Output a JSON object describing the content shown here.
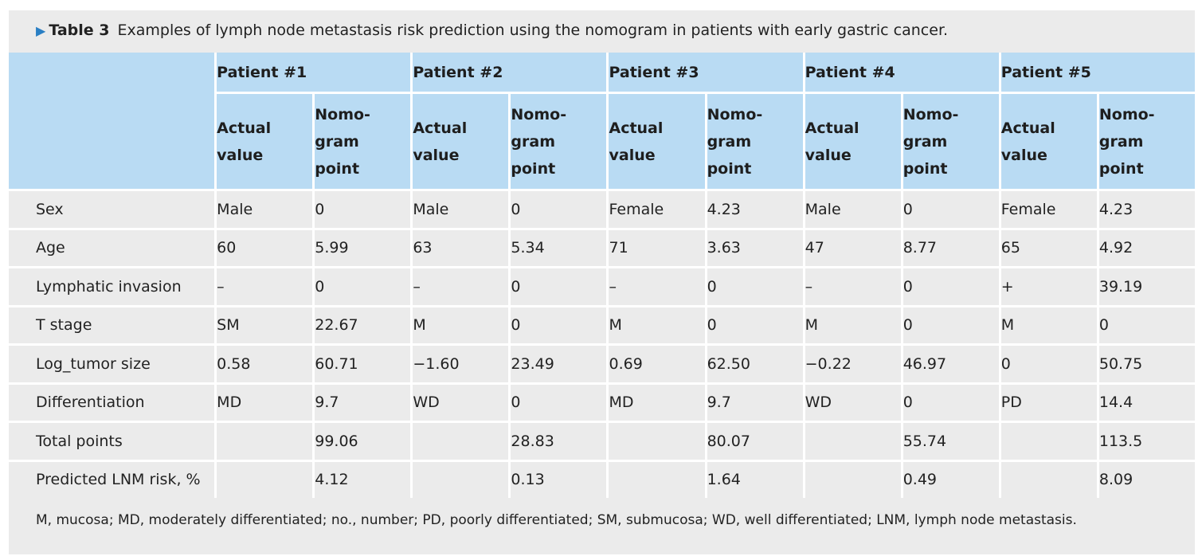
{
  "caption": {
    "arrow": "▶",
    "label": "Table 3",
    "text": "Examples of lymph node metastasis risk prediction using the nomogram in patients with early gastric cancer."
  },
  "patients": [
    "Patient #1",
    "Patient #2",
    "Patient #3",
    "Patient #4",
    "Patient #5"
  ],
  "subheaders": {
    "actual": [
      "Actual",
      "value"
    ],
    "nomogram": [
      "Nomo-",
      "gram",
      "point"
    ]
  },
  "rows": [
    {
      "label": "Sex",
      "cells": [
        "Male",
        "0",
        "Male",
        "0",
        "Female",
        "4.23",
        "Male",
        "0",
        "Female",
        "4.23"
      ]
    },
    {
      "label": "Age",
      "cells": [
        "60",
        "5.99",
        "63",
        "5.34",
        "71",
        "3.63",
        "47",
        "8.77",
        "65",
        "4.92"
      ]
    },
    {
      "label": "Lymphatic invasion",
      "cells": [
        "–",
        "0",
        "–",
        "0",
        "–",
        "0",
        "–",
        "0",
        "+",
        "39.19"
      ]
    },
    {
      "label": "T stage",
      "cells": [
        "SM",
        "22.67",
        "M",
        "0",
        "M",
        "0",
        "M",
        "0",
        "M",
        "0"
      ]
    },
    {
      "label": "Log_tumor size",
      "cells": [
        "0.58",
        "60.71",
        "−1.60",
        "23.49",
        "0.69",
        "62.50",
        "−0.22",
        "46.97",
        "0",
        "50.75"
      ]
    },
    {
      "label": "Differentiation",
      "cells": [
        "MD",
        "9.7",
        "WD",
        "0",
        "MD",
        "9.7",
        "WD",
        "0",
        "PD",
        "14.4"
      ]
    },
    {
      "label": "Total points",
      "cells": [
        "",
        "99.06",
        "",
        "28.83",
        "",
        "80.07",
        "",
        "55.74",
        "",
        "113.5"
      ]
    },
    {
      "label": "Predicted LNM risk, %",
      "cells": [
        "",
        "4.12",
        "",
        "0.13",
        "",
        "1.64",
        "",
        "0.49",
        "",
        "8.09"
      ]
    }
  ],
  "footnote": "M, mucosa; MD, moderately differentiated; no., number; PD, poorly differentiated; SM, submucosa; WD, well differentiated; LNM, lymph node metastasis.",
  "colors": {
    "header_bg": "#b9dbf3",
    "body_bg": "#ebebeb",
    "arrow": "#2a7fc4"
  }
}
